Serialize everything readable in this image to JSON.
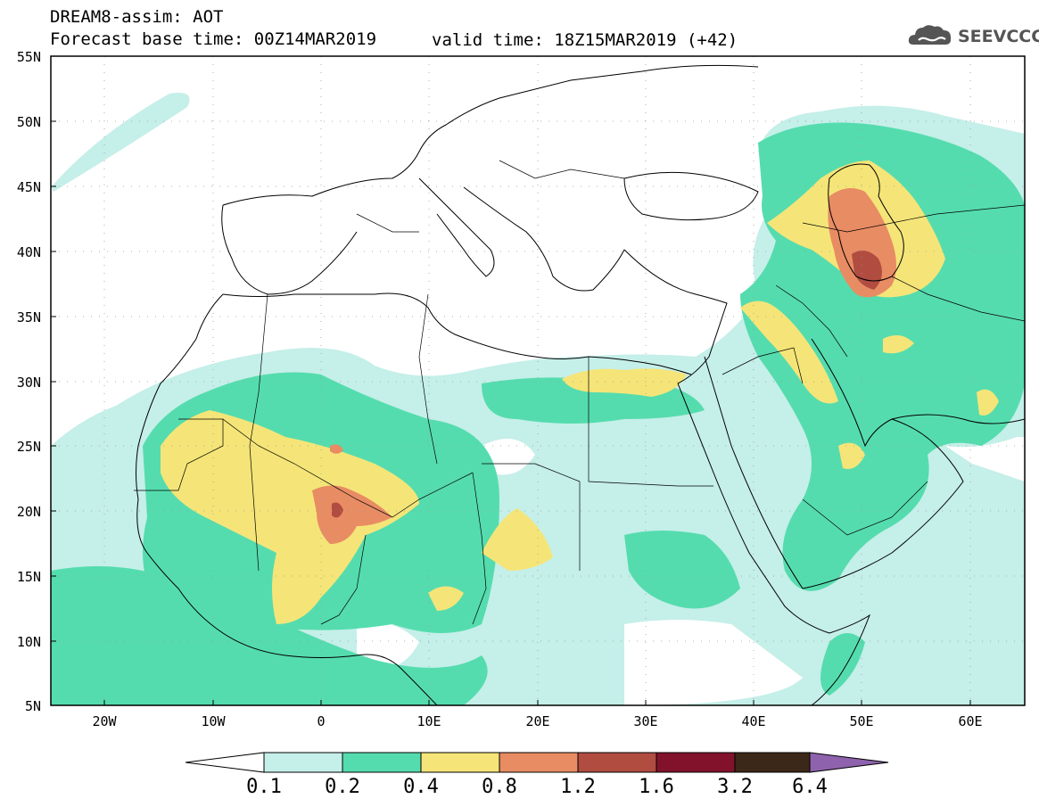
{
  "title": {
    "line1": "DREAM8-assim: AOT",
    "line2": "Forecast base time: 00Z14MAR2019",
    "valid": "valid time: 18Z15MAR2019 (+42)"
  },
  "logo": {
    "text": "SEEVCCC",
    "icon": "cloud-icon"
  },
  "map": {
    "variable": "AOT",
    "lon_range": [
      -25,
      65
    ],
    "lat_range": [
      5,
      55
    ],
    "lat_ticks": [
      "55N",
      "50N",
      "45N",
      "40N",
      "35N",
      "30N",
      "25N",
      "20N",
      "15N",
      "10N",
      "5N"
    ],
    "lon_ticks": [
      "20W",
      "10W",
      "0",
      "10E",
      "20E",
      "30E",
      "40E",
      "50E",
      "60E"
    ],
    "gridlines": true
  },
  "colorbar": {
    "labels": [
      "0.1",
      "0.2",
      "0.4",
      "0.8",
      "1.2",
      "1.6",
      "3.2",
      "6.4"
    ],
    "colors": [
      "#c5efe9",
      "#55dcae",
      "#f5e578",
      "#e88c64",
      "#b04c40",
      "#82122c",
      "#3c2818",
      "#8e62ac"
    ],
    "extend": "both"
  },
  "colors": {
    "c01": "#c5efe9",
    "c02": "#55dcae",
    "c04": "#f5e578",
    "c08": "#e88c64",
    "c12": "#b04c40"
  }
}
